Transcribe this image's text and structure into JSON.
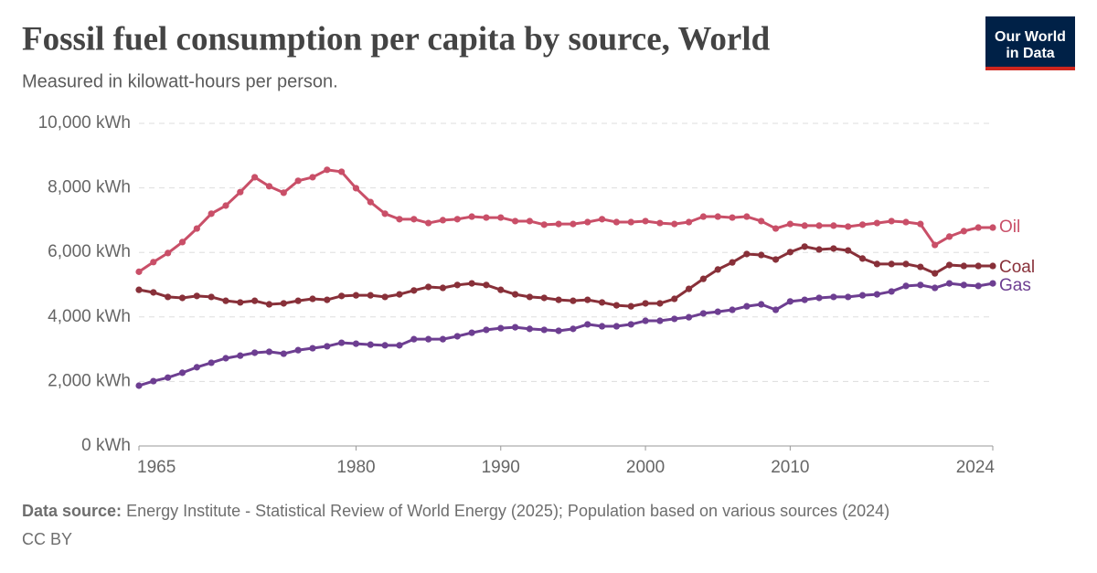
{
  "chart_data": {
    "type": "line",
    "title": "Fossil fuel consumption per capita by source, World",
    "subtitle": "Measured in kilowatt-hours per person.",
    "logo": [
      "Our World",
      "in Data"
    ],
    "source_label": "Data source:",
    "source_text": "Energy Institute - Statistical Review of World Energy (2025); Population based on various sources (2024)",
    "license": "CC BY",
    "x": [
      1965,
      1966,
      1967,
      1968,
      1969,
      1970,
      1971,
      1972,
      1973,
      1974,
      1975,
      1976,
      1977,
      1978,
      1979,
      1980,
      1981,
      1982,
      1983,
      1984,
      1985,
      1986,
      1987,
      1988,
      1989,
      1990,
      1991,
      1992,
      1993,
      1994,
      1995,
      1996,
      1997,
      1998,
      1999,
      2000,
      2001,
      2002,
      2003,
      2004,
      2005,
      2006,
      2007,
      2008,
      2009,
      2010,
      2011,
      2012,
      2013,
      2014,
      2015,
      2016,
      2017,
      2018,
      2019,
      2020,
      2021,
      2022,
      2023,
      2024
    ],
    "xlim": [
      1965,
      2024
    ],
    "xticks": [
      1965,
      1980,
      1990,
      2000,
      2010,
      2024
    ],
    "ylim": [
      0,
      10000
    ],
    "yticks": [
      {
        "value": 0,
        "label": "0 kWh"
      },
      {
        "value": 2000,
        "label": "2,000 kWh"
      },
      {
        "value": 4000,
        "label": "4,000 kWh"
      },
      {
        "value": 6000,
        "label": "6,000 kWh"
      },
      {
        "value": 8000,
        "label": "8,000 kWh"
      },
      {
        "value": 10000,
        "label": "10,000 kWh"
      }
    ],
    "grid": true,
    "series": [
      {
        "name": "Oil",
        "color": "#c94f68",
        "values": [
          5400,
          5700,
          5980,
          6320,
          6740,
          7200,
          7450,
          7870,
          8330,
          8050,
          7850,
          8220,
          8330,
          8560,
          8500,
          7990,
          7560,
          7200,
          7030,
          7030,
          6910,
          7000,
          7030,
          7110,
          7080,
          7080,
          6970,
          6970,
          6860,
          6880,
          6880,
          6940,
          7030,
          6940,
          6940,
          6970,
          6910,
          6880,
          6940,
          7110,
          7110,
          7080,
          7110,
          6970,
          6740,
          6880,
          6830,
          6830,
          6830,
          6800,
          6860,
          6910,
          6970,
          6940,
          6880,
          6230,
          6490,
          6660,
          6770,
          6770
        ]
      },
      {
        "name": "Coal",
        "color": "#883039",
        "values": [
          4840,
          4760,
          4620,
          4590,
          4650,
          4620,
          4500,
          4450,
          4500,
          4390,
          4420,
          4500,
          4560,
          4530,
          4650,
          4670,
          4670,
          4620,
          4700,
          4820,
          4930,
          4900,
          4990,
          5040,
          4990,
          4840,
          4700,
          4620,
          4590,
          4530,
          4500,
          4530,
          4450,
          4360,
          4330,
          4420,
          4420,
          4560,
          4870,
          5180,
          5470,
          5690,
          5950,
          5920,
          5780,
          6010,
          6180,
          6090,
          6120,
          6060,
          5810,
          5640,
          5640,
          5640,
          5550,
          5350,
          5610,
          5580,
          5580,
          5580
        ]
      },
      {
        "name": "Gas",
        "color": "#6d3e91",
        "values": [
          1870,
          2010,
          2120,
          2270,
          2440,
          2580,
          2720,
          2800,
          2890,
          2920,
          2860,
          2970,
          3030,
          3090,
          3200,
          3170,
          3140,
          3120,
          3120,
          3310,
          3310,
          3310,
          3400,
          3510,
          3600,
          3650,
          3680,
          3630,
          3600,
          3570,
          3630,
          3770,
          3710,
          3710,
          3770,
          3880,
          3880,
          3940,
          3990,
          4110,
          4160,
          4220,
          4330,
          4390,
          4220,
          4480,
          4530,
          4590,
          4620,
          4620,
          4670,
          4700,
          4790,
          4960,
          4990,
          4900,
          5040,
          4990,
          4960,
          5040
        ]
      }
    ]
  }
}
